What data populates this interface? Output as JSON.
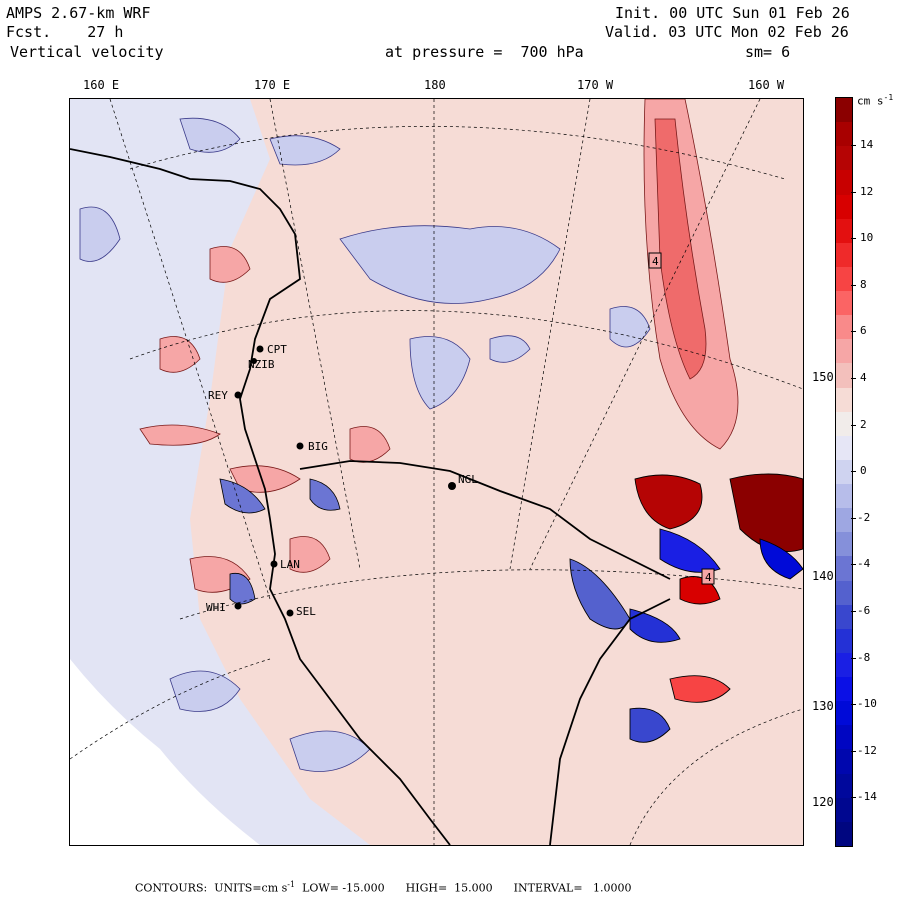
{
  "header": {
    "model": "AMPS 2.67-km WRF",
    "forecast": "Fcst.    27 h",
    "field": "Vertical velocity",
    "init": "Init. 00 UTC Sun 01 Feb 26",
    "valid": "Valid. 03 UTC Mon 02 Feb 26",
    "pressure": "at pressure =  700 hPa",
    "smoothing": "sm= 6"
  },
  "lon_labels": [
    "160 E",
    "170 E",
    "180",
    "170 W",
    "160 W"
  ],
  "lat_labels": [
    "150 W",
    "140 W",
    "130 W",
    "120 W"
  ],
  "stations": [
    {
      "name": "CPT"
    },
    {
      "name": "NZIB"
    },
    {
      "name": "REY"
    },
    {
      "name": "BIG"
    },
    {
      "name": "NGL"
    },
    {
      "name": "LAN"
    },
    {
      "name": "WHI"
    },
    {
      "name": "SEL"
    }
  ],
  "highs": [
    "4",
    "4"
  ],
  "colorbar": {
    "units": "cm s",
    "units_exp": "-1",
    "ticks": [
      "14",
      "12",
      "10",
      "8",
      "6",
      "4",
      "2",
      "0",
      "-2",
      "-4",
      "-6",
      "-8",
      "-10",
      "-12",
      "-14"
    ],
    "colors": [
      "#8b0000",
      "#a80000",
      "#b50404",
      "#c80000",
      "#d80000",
      "#e31010",
      "#ef2a2a",
      "#f74444",
      "#fb6464",
      "#f98a8a",
      "#f6a6a6",
      "#f3c0bc",
      "#f6dcd6",
      "#f1ecea",
      "#e6e6f6",
      "#cfd3f0",
      "#b7bdea",
      "#9ea7e2",
      "#8590da",
      "#6b75d3",
      "#5461ce",
      "#3947ce",
      "#2431d6",
      "#1a1fe4",
      "#0b10e6",
      "#000ad8",
      "#0006c2",
      "#0007ae",
      "#00089c",
      "#000790",
      "#000680"
    ]
  },
  "footer": {
    "label": "CONTOURS:",
    "units_label": "UNITS=cm s",
    "units_exp": "-1",
    "low": "LOW= -15.000",
    "high": "HIGH=  15.000",
    "interval": "INTERVAL=   1.0000"
  }
}
